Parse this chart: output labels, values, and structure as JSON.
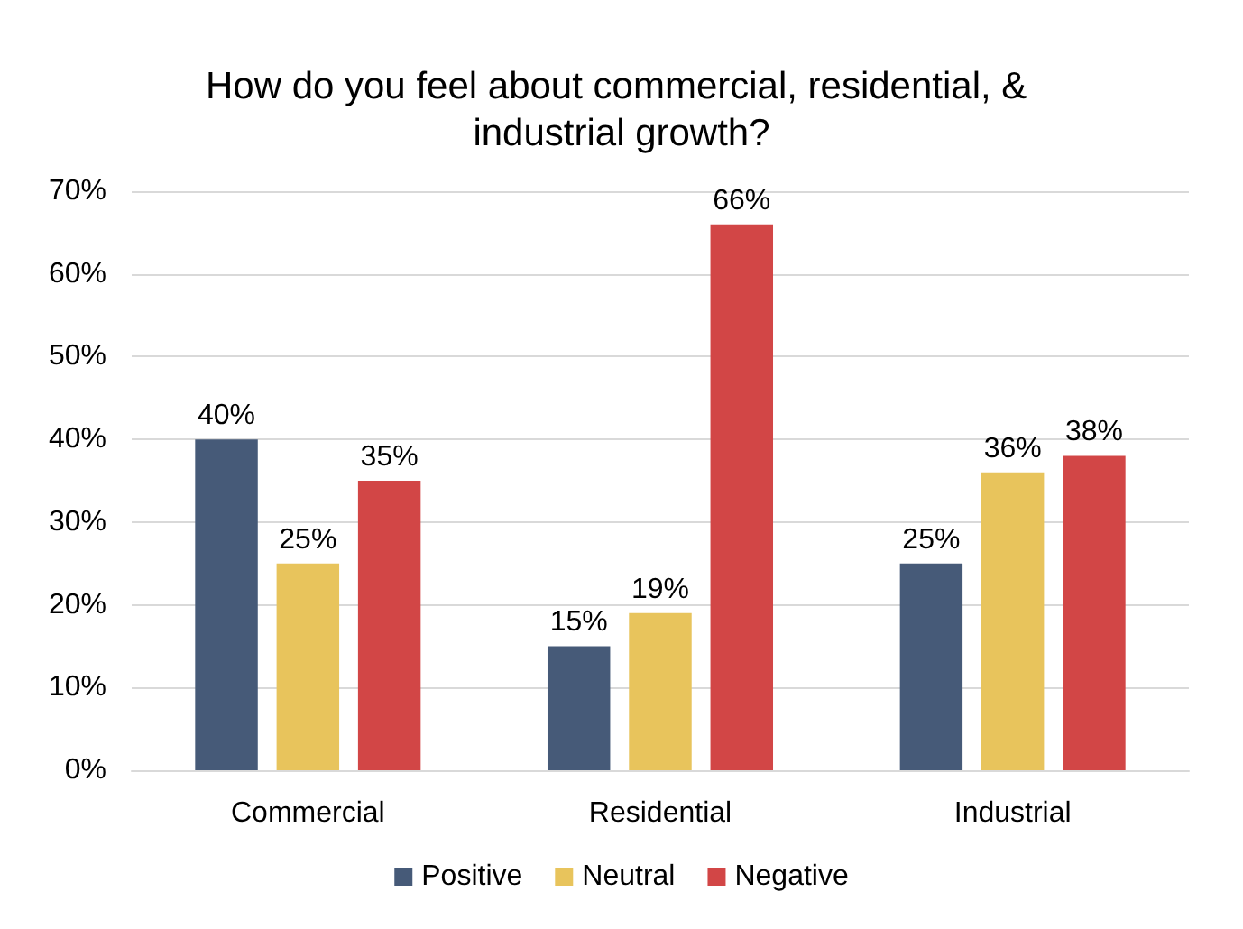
{
  "chart_data": {
    "type": "bar",
    "title": "How do you feel about commercial, residential, & industrial growth?",
    "categories": [
      "Commercial",
      "Residential",
      "Industrial"
    ],
    "series": [
      {
        "name": "Positive",
        "color": "#465a78",
        "values": [
          40,
          15,
          25
        ],
        "value_labels": [
          "40%",
          "15%",
          "25%"
        ]
      },
      {
        "name": "Neutral",
        "color": "#e8c45c",
        "values": [
          25,
          19,
          36
        ],
        "value_labels": [
          "25%",
          "19%",
          "36%"
        ]
      },
      {
        "name": "Negative",
        "color": "#d24646",
        "values": [
          35,
          66,
          38
        ],
        "value_labels": [
          "35%",
          "66%",
          "38%"
        ]
      }
    ],
    "ylim": [
      0,
      70
    ],
    "yticks": [
      {
        "value": 0,
        "label": "0%"
      },
      {
        "value": 10,
        "label": "10%"
      },
      {
        "value": 20,
        "label": "20%"
      },
      {
        "value": 30,
        "label": "30%"
      },
      {
        "value": 40,
        "label": "40%"
      },
      {
        "value": 50,
        "label": "50%"
      },
      {
        "value": 60,
        "label": "60%"
      },
      {
        "value": 70,
        "label": "70%"
      }
    ],
    "grid": "y",
    "legend": "bottom"
  }
}
